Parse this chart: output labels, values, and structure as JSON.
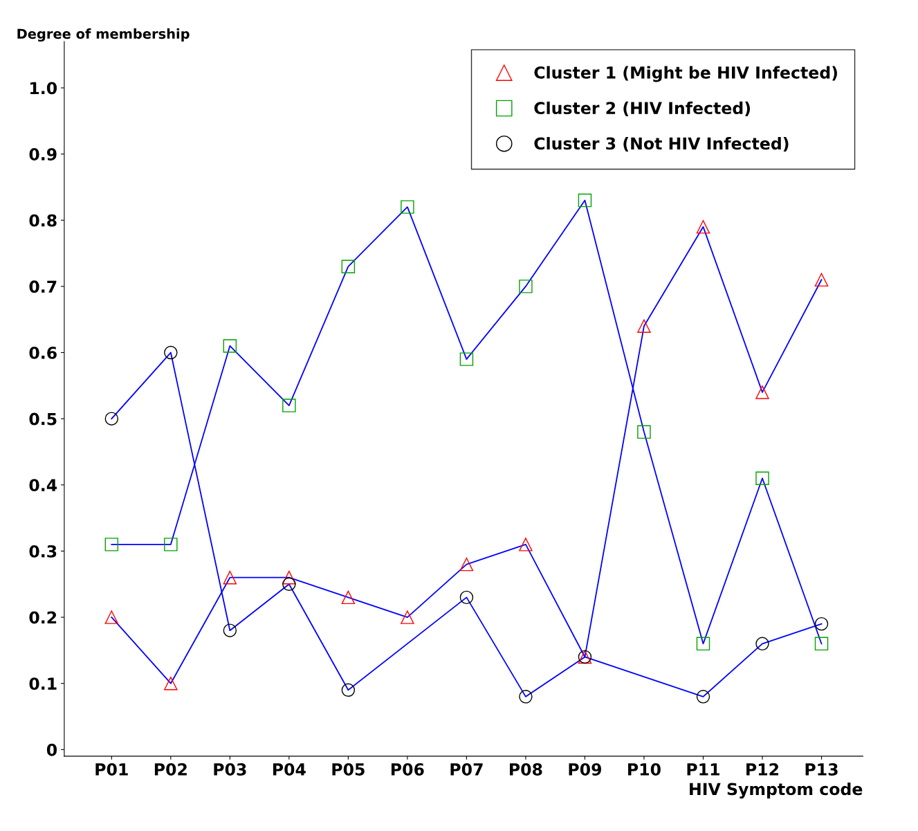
{
  "chart_data": {
    "type": "line",
    "ylabel": "Degree of membership",
    "xlabel": "HIV Symptom code",
    "categories": [
      "P01",
      "P02",
      "P03",
      "P04",
      "P05",
      "P06",
      "P07",
      "P08",
      "P09",
      "P10",
      "P11",
      "P12",
      "P13"
    ],
    "ylim": [
      -0.01,
      1.07
    ],
    "yticks": [
      0,
      0.1,
      0.2,
      0.3,
      0.4,
      0.5,
      0.6,
      0.7,
      0.8,
      0.9,
      {
        "value": 1.0,
        "label": "1.0"
      }
    ],
    "grid": false,
    "legend": "top right",
    "line_style": "solid",
    "series": [
      {
        "name": "Cluster 1 (Might be HIV Infected)",
        "color": "#0000ff",
        "marker": "triangle",
        "colors": [
          "#ff0000",
          "#ff0000",
          "#ff0000",
          "#ff0000",
          "#ff0000",
          "#ff0000",
          "#ff0000",
          "#ff0000",
          "#ff0000",
          "#ff0000",
          "#ff0000",
          "#ff0000",
          "#ff0000"
        ],
        "values": [
          0.2,
          0.1,
          0.26,
          0.26,
          0.23,
          0.2,
          0.28,
          0.31,
          0.14,
          0.64,
          0.79,
          0.54,
          0.71
        ]
      },
      {
        "name": "Cluster 2 (HIV Infected)",
        "color": "#0000ff",
        "marker": "square",
        "colors": [
          "#00a000",
          "#00a000",
          "#00a000",
          "#00a000",
          "#00a000",
          "#00a000",
          "#00a000",
          "#00a000",
          "#00a000",
          "#00a000",
          "#00a000",
          "#00a000",
          "#00a000"
        ],
        "values": [
          0.31,
          0.31,
          0.61,
          0.52,
          0.73,
          0.82,
          0.59,
          0.7,
          0.83,
          0.48,
          0.16,
          0.41,
          0.16
        ]
      },
      {
        "name": "Cluster 3 (Not HIV Infected)",
        "color": "#0000ff",
        "marker": "circle",
        "colors": [
          "#000000",
          "#000000",
          "#000000",
          "#000000",
          "#000000",
          "#000000",
          "#000000",
          "#000000",
          "#000000",
          "#000000",
          "#000000",
          "#000000",
          "#000000"
        ],
        "values": [
          0.5,
          0.6,
          0.18,
          0.25,
          0.09,
          null,
          0.23,
          0.08,
          0.14,
          null,
          0.08,
          0.16,
          0.19
        ]
      }
    ]
  }
}
